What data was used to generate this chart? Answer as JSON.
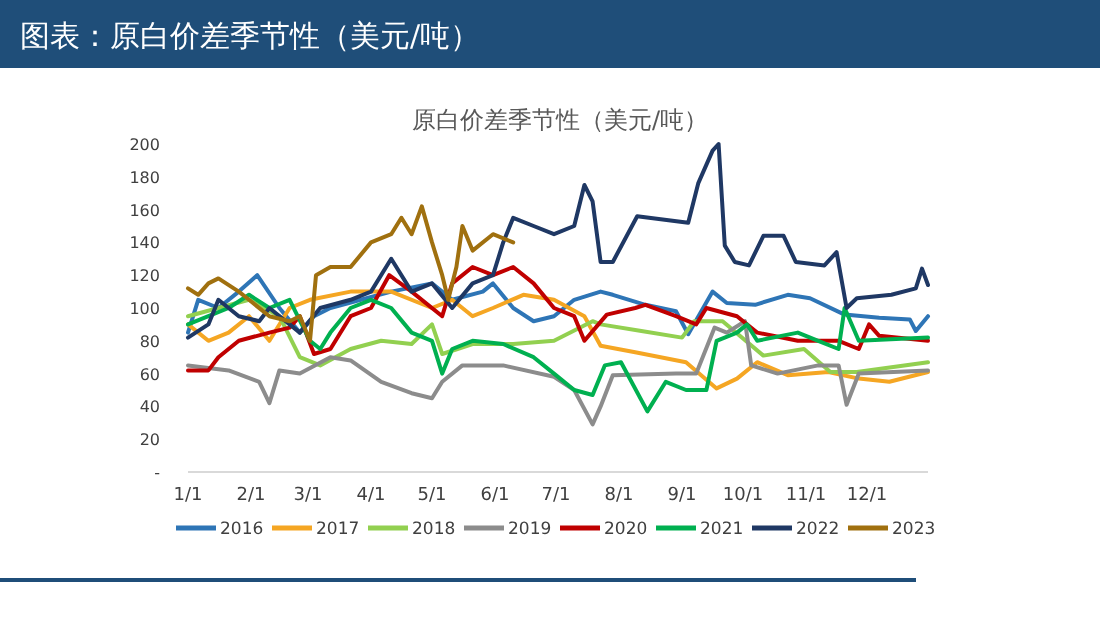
{
  "chart_data": {
    "type": "line",
    "title": "图表：原白价差季节性（美元/吨）",
    "subtitle": "原白价差季节性（美元/吨）",
    "xlim": [
      "--01-01",
      "--12-31"
    ],
    "xticks": [
      {
        "value": "--01-01",
        "label": "1/1"
      },
      {
        "value": "--02-01",
        "label": "2/1"
      },
      {
        "value": "--03-01",
        "label": "3/1"
      },
      {
        "value": "--04-01",
        "label": "4/1"
      },
      {
        "value": "--05-01",
        "label": "5/1"
      },
      {
        "value": "--06-01",
        "label": "6/1"
      },
      {
        "value": "--07-01",
        "label": "7/1"
      },
      {
        "value": "--08-01",
        "label": "8/1"
      },
      {
        "value": "--09-01",
        "label": "9/1"
      },
      {
        "value": "--10-01",
        "label": "10/1"
      },
      {
        "value": "--11-01",
        "label": "11/1"
      },
      {
        "value": "--12-01",
        "label": "12/1"
      }
    ],
    "ylim": [
      0,
      200
    ],
    "yticks": [
      {
        "value": 0,
        "label": "-"
      },
      20,
      40,
      60,
      80,
      100,
      120,
      140,
      160,
      180,
      200
    ],
    "grid": false,
    "legend": "bottom",
    "line_style": "solid",
    "marker": "none",
    "series": [
      {
        "name": "2016",
        "color": "#2e75b6",
        "x": [
          "--01-01",
          "--01-06",
          "--01-16",
          "--01-26",
          "--02-04",
          "--02-15",
          "--02-25",
          "--03-04",
          "--03-12",
          "--03-27",
          "--04-11",
          "--05-01",
          "--05-11",
          "--05-26",
          "--05-31",
          "--06-10",
          "--06-20",
          "--06-30",
          "--07-10",
          "--07-23",
          "--07-29",
          "--08-14",
          "--08-29",
          "--09-04",
          "--09-16",
          "--09-23",
          "--10-07",
          "--10-23",
          "--11-03",
          "--11-20",
          "--12-07",
          "--12-22",
          "--12-25",
          "--12-31"
        ],
        "values": [
          85,
          105,
          100,
          110,
          120,
          100,
          85,
          95,
          100,
          105,
          110,
          115,
          105,
          110,
          115,
          100,
          92,
          95,
          105,
          110,
          108,
          102,
          98,
          84,
          110,
          103,
          102,
          108,
          106,
          96,
          94,
          93,
          86,
          95
        ]
      },
      {
        "name": "2017",
        "color": "#f5a623",
        "x": [
          "--01-01",
          "--01-11",
          "--01-21",
          "--01-31",
          "--02-10",
          "--02-20",
          "--03-02",
          "--03-22",
          "--04-11",
          "--05-01",
          "--05-11",
          "--05-21",
          "--05-31",
          "--06-15",
          "--06-30",
          "--07-15",
          "--07-23",
          "--08-09",
          "--09-03",
          "--09-18",
          "--09-28",
          "--10-08",
          "--10-23",
          "--11-12",
          "--11-27",
          "--12-12",
          "--12-31"
        ],
        "values": [
          90,
          80,
          85,
          95,
          80,
          100,
          105,
          110,
          110,
          100,
          105,
          95,
          100,
          108,
          105,
          95,
          77,
          73,
          67,
          51,
          57,
          67,
          59,
          61,
          57,
          55,
          61
        ]
      },
      {
        "name": "2018",
        "color": "#92d050",
        "x": [
          "--01-01",
          "--01-16",
          "--01-31",
          "--02-15",
          "--02-25",
          "--03-07",
          "--03-22",
          "--04-06",
          "--04-21",
          "--05-01",
          "--05-06",
          "--05-21",
          "--06-10",
          "--06-30",
          "--07-19",
          "--07-23",
          "--08-12",
          "--09-01",
          "--09-07",
          "--09-21",
          "--10-11",
          "--10-31",
          "--11-13",
          "--11-26",
          "--12-31"
        ],
        "values": [
          95,
          100,
          105,
          95,
          70,
          65,
          75,
          80,
          78,
          90,
          72,
          78,
          78,
          80,
          92,
          90,
          86,
          82,
          92,
          92,
          71,
          75,
          61,
          61,
          67
        ]
      },
      {
        "name": "2019",
        "color": "#8c8c8c",
        "x": [
          "--01-01",
          "--01-21",
          "--02-05",
          "--02-10",
          "--02-15",
          "--02-25",
          "--03-12",
          "--03-22",
          "--04-06",
          "--04-21",
          "--05-01",
          "--05-06",
          "--05-16",
          "--06-05",
          "--06-30",
          "--07-10",
          "--07-19",
          "--07-23",
          "--07-29",
          "--08-29",
          "--09-08",
          "--09-17",
          "--09-23",
          "--10-02",
          "--10-05",
          "--10-18",
          "--11-07",
          "--11-17",
          "--11-21",
          "--11-27",
          "--12-31"
        ],
        "values": [
          65,
          62,
          55,
          42,
          62,
          60,
          70,
          68,
          55,
          48,
          45,
          55,
          65,
          65,
          58,
          50,
          29,
          40,
          59,
          60,
          60,
          88,
          85,
          92,
          65,
          60,
          65,
          65,
          41,
          60,
          62
        ]
      },
      {
        "name": "2020",
        "color": "#c00000",
        "x": [
          "--01-01",
          "--01-11",
          "--01-16",
          "--01-26",
          "--02-10",
          "--02-20",
          "--02-25",
          "--03-04",
          "--03-12",
          "--03-22",
          "--04-01",
          "--04-10",
          "--04-21",
          "--05-06",
          "--05-11",
          "--05-21",
          "--05-31",
          "--06-10",
          "--06-20",
          "--06-30",
          "--07-10",
          "--07-15",
          "--07-26",
          "--08-09",
          "--08-14",
          "--08-29",
          "--09-08",
          "--09-13",
          "--09-28",
          "--10-08",
          "--10-28",
          "--11-17",
          "--11-27",
          "--12-02",
          "--12-07",
          "--12-31"
        ],
        "values": [
          62,
          62,
          70,
          80,
          85,
          88,
          95,
          72,
          75,
          95,
          100,
          120,
          110,
          95,
          115,
          125,
          120,
          125,
          115,
          100,
          95,
          80,
          96,
          100,
          102,
          95,
          90,
          100,
          95,
          85,
          80,
          80,
          75,
          90,
          83,
          80
        ]
      },
      {
        "name": "2021",
        "color": "#00b050",
        "x": [
          "--01-01",
          "--01-11",
          "--01-21",
          "--01-31",
          "--02-10",
          "--02-20",
          "--03-02",
          "--03-07",
          "--03-12",
          "--03-22",
          "--04-01",
          "--04-11",
          "--04-21",
          "--05-01",
          "--05-06",
          "--05-11",
          "--05-21",
          "--06-05",
          "--06-20",
          "--06-30",
          "--07-10",
          "--07-19",
          "--07-25",
          "--08-02",
          "--08-15",
          "--08-24",
          "--09-03",
          "--09-13",
          "--09-18",
          "--09-28",
          "--10-03",
          "--10-08",
          "--10-28",
          "--11-07",
          "--11-17",
          "--11-20",
          "--11-27",
          "--12-31"
        ],
        "values": [
          90,
          95,
          100,
          108,
          100,
          105,
          80,
          75,
          85,
          100,
          105,
          100,
          85,
          80,
          60,
          75,
          80,
          78,
          70,
          60,
          50,
          47,
          65,
          67,
          37,
          55,
          50,
          50,
          80,
          85,
          90,
          80,
          85,
          80,
          75,
          100,
          80,
          82
        ]
      },
      {
        "name": "2022",
        "color": "#1f3864",
        "x": [
          "--01-01",
          "--01-11",
          "--01-16",
          "--01-26",
          "--02-05",
          "--02-10",
          "--02-20",
          "--02-25",
          "--03-07",
          "--03-22",
          "--04-01",
          "--04-11",
          "--04-21",
          "--05-01",
          "--05-11",
          "--05-21",
          "--05-31",
          "--06-05",
          "--06-10",
          "--06-20",
          "--06-30",
          "--07-10",
          "--07-15",
          "--07-19",
          "--07-23",
          "--07-29",
          "--08-10",
          "--09-04",
          "--09-09",
          "--09-16",
          "--09-19",
          "--09-22",
          "--09-27",
          "--10-04",
          "--10-11",
          "--10-21",
          "--10-27",
          "--11-10",
          "--11-16",
          "--11-21",
          "--11-26",
          "--12-13",
          "--12-25",
          "--12-28",
          "--12-31"
        ],
        "values": [
          82,
          90,
          105,
          95,
          92,
          100,
          90,
          85,
          100,
          105,
          110,
          130,
          110,
          115,
          100,
          115,
          120,
          140,
          155,
          150,
          145,
          150,
          175,
          165,
          128,
          128,
          156,
          152,
          176,
          196,
          200,
          138,
          128,
          126,
          144,
          144,
          128,
          126,
          134,
          100,
          106,
          108,
          112,
          124,
          114
        ]
      },
      {
        "name": "2023",
        "color": "#a0700f",
        "x": [
          "--01-01",
          "--01-06",
          "--01-11",
          "--01-16",
          "--01-26",
          "--01-31",
          "--02-10",
          "--02-20",
          "--02-25",
          "--03-02",
          "--03-05",
          "--03-12",
          "--03-22",
          "--04-01",
          "--04-11",
          "--04-16",
          "--04-21",
          "--04-26",
          "--05-01",
          "--05-06",
          "--05-09",
          "--05-13",
          "--05-16",
          "--05-21",
          "--05-31",
          "--06-10"
        ],
        "values": [
          112,
          108,
          115,
          118,
          110,
          105,
          95,
          92,
          95,
          80,
          120,
          125,
          125,
          140,
          145,
          155,
          145,
          162,
          140,
          120,
          105,
          125,
          150,
          135,
          145,
          140
        ]
      }
    ]
  }
}
